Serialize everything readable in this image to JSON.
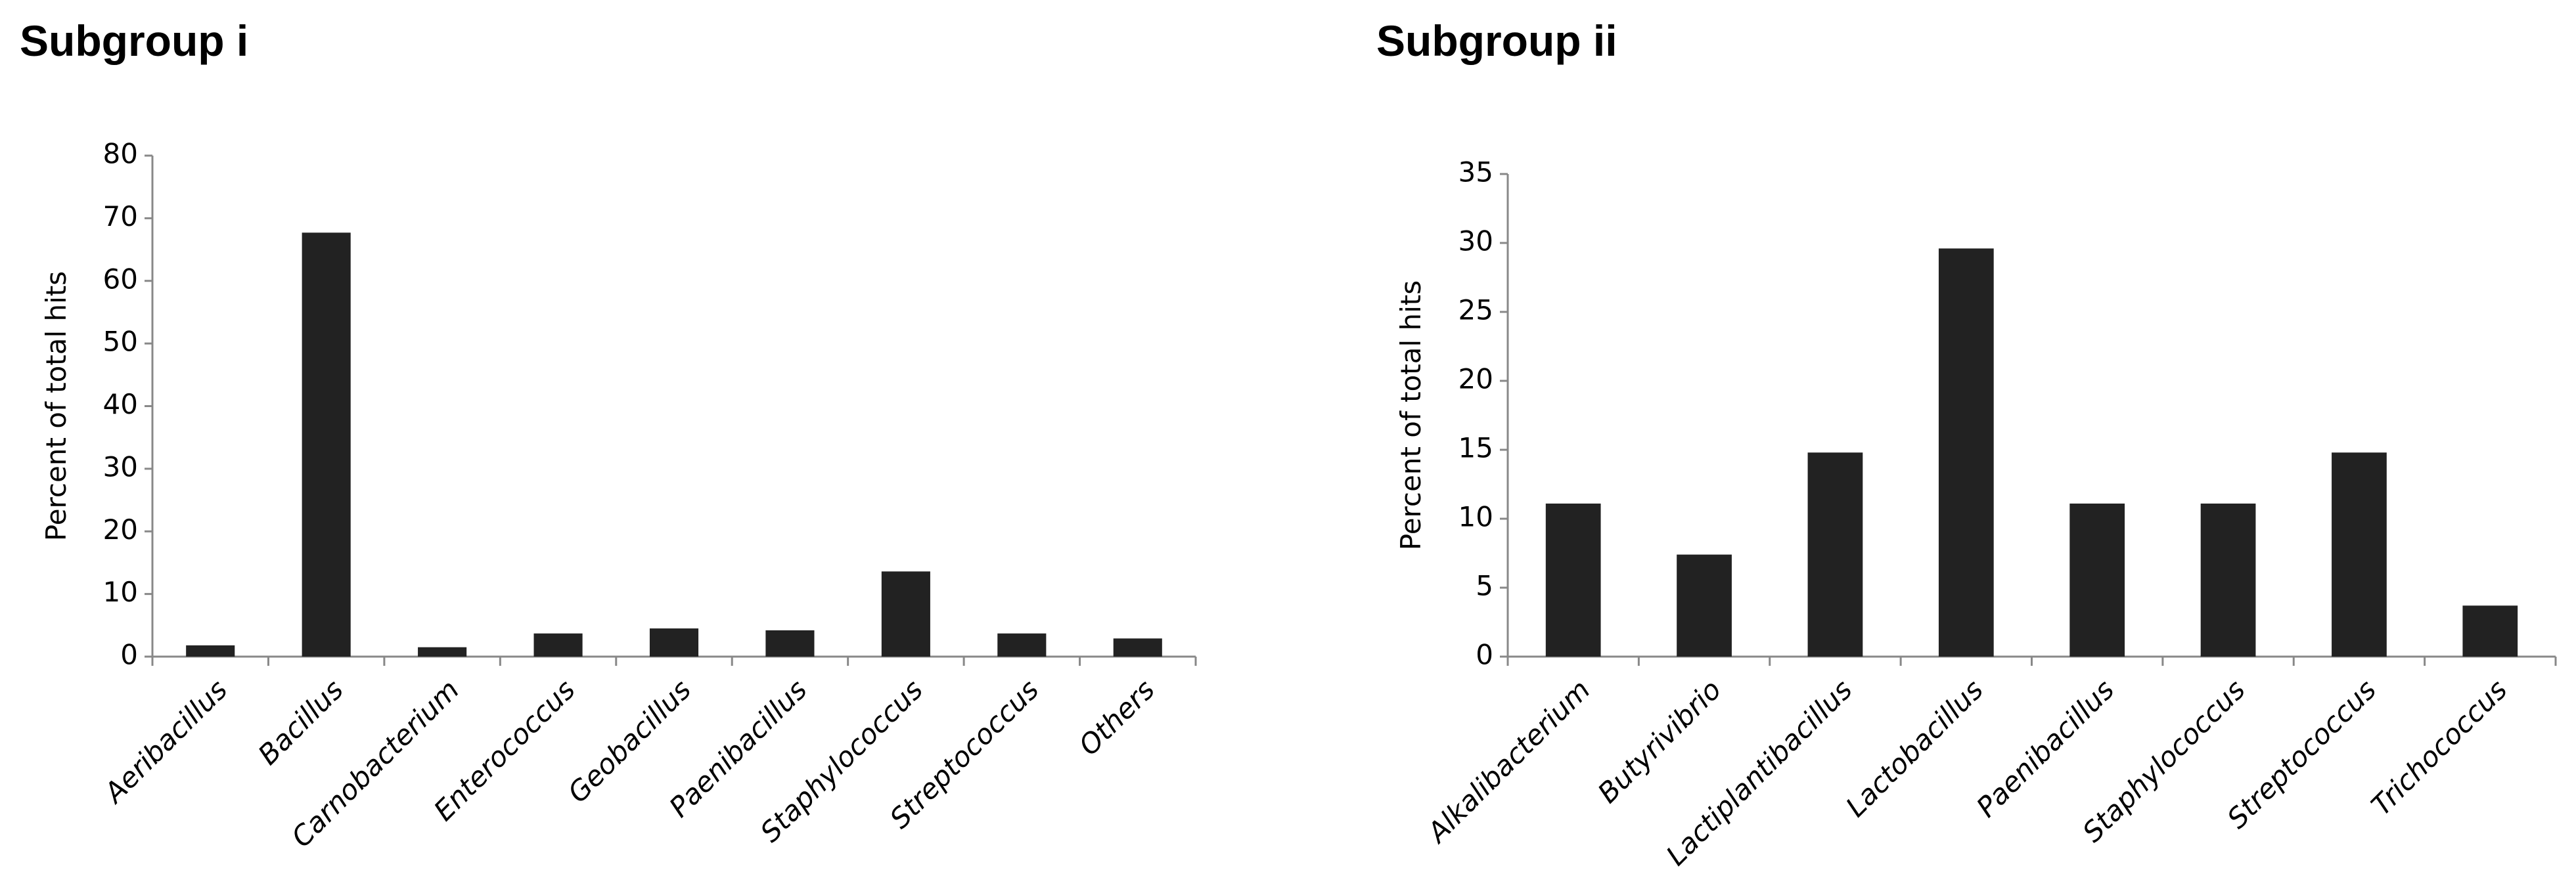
{
  "chart_data": [
    {
      "type": "bar",
      "title": "Subgroup i",
      "y_label": "Percent of total hits",
      "categories": [
        "Aeribacillus",
        "Bacillus",
        "Carnobacterium",
        "Enterococcus",
        "Geobacillus",
        "Paenibacillus",
        "Staphylococcus",
        "Streptococcus",
        "Others"
      ],
      "values": [
        1.8,
        67.7,
        1.5,
        3.7,
        4.5,
        4.2,
        13.6,
        3.7,
        2.9
      ],
      "color": "#222222",
      "ylim": [
        0,
        80
      ],
      "yticks": [
        0,
        10,
        20,
        30,
        40,
        50,
        60,
        70,
        80
      ],
      "grid": false
    },
    {
      "type": "bar",
      "title": "Subgroup ii",
      "y_label": "Percent of total hits",
      "categories": [
        "Alkalibacterium",
        "Butyrivibrio",
        "Lactiplantibacillus",
        "Lactobacillus",
        "Paenibacillus",
        "Staphylococcus",
        "Streptococcus",
        "Trichococcus"
      ],
      "values": [
        11.1,
        7.4,
        14.8,
        29.6,
        11.1,
        11.1,
        14.8,
        3.7
      ],
      "color": "#222222",
      "ylim": [
        0,
        35
      ],
      "yticks": [
        0,
        5,
        10,
        15,
        20,
        25,
        30,
        35
      ],
      "grid": false
    }
  ]
}
